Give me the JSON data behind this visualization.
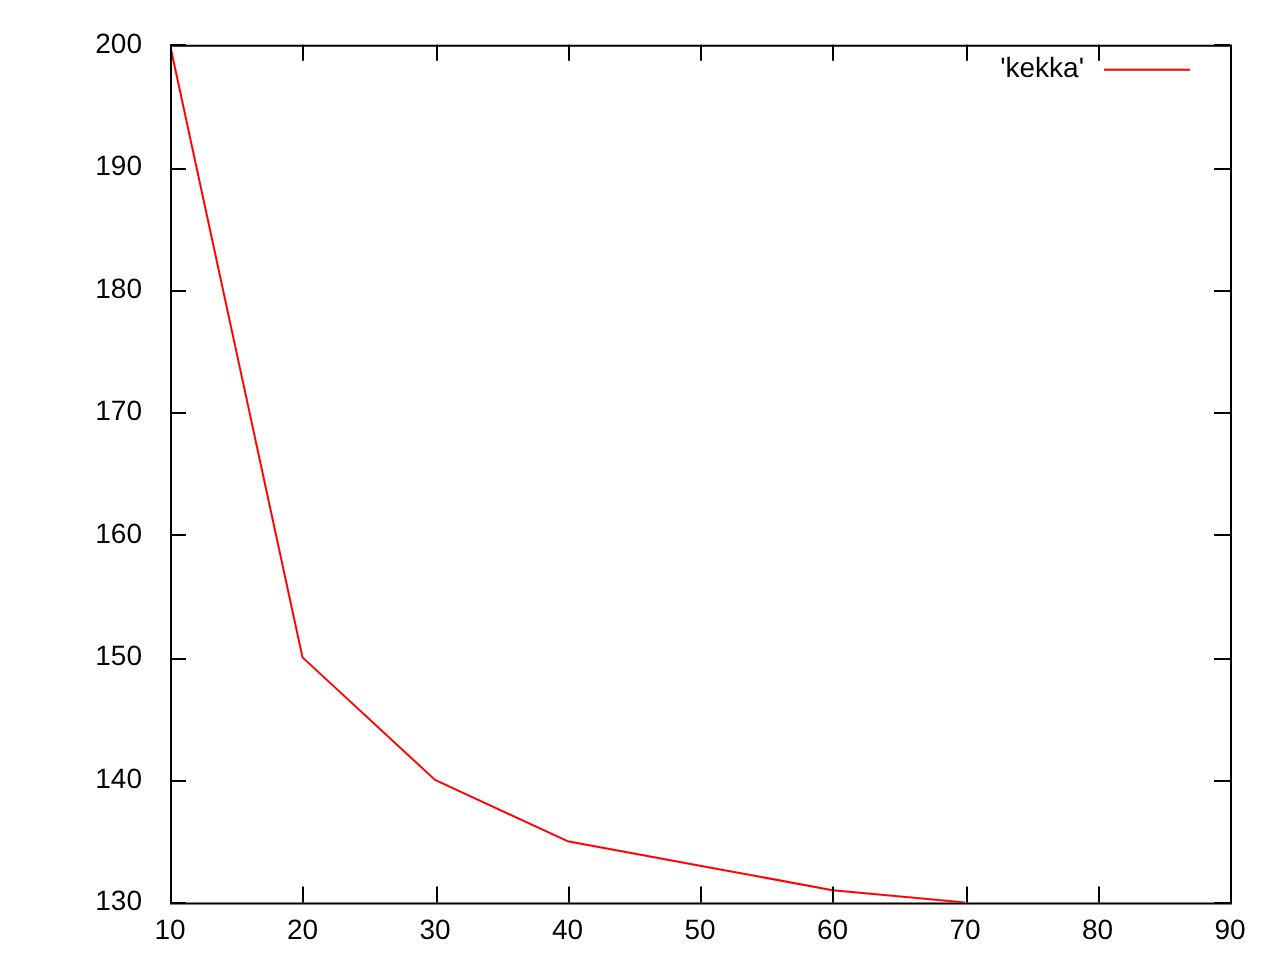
{
  "chart_data": {
    "type": "line",
    "x": [
      10,
      20,
      30,
      40,
      50,
      60,
      70
    ],
    "series": [
      {
        "name": "'kekka'",
        "color": "#ff0000",
        "values": [
          200,
          150,
          140,
          135,
          133,
          131,
          130
        ]
      }
    ],
    "xlim": [
      10,
      90
    ],
    "xticks": [
      10,
      20,
      30,
      40,
      50,
      60,
      70,
      80,
      90
    ],
    "ylim": [
      130,
      200
    ],
    "yticks": [
      130,
      140,
      150,
      160,
      170,
      180,
      190,
      200
    ],
    "grid": false,
    "legend": "top right",
    "marker": "none",
    "line_style": "solid"
  }
}
